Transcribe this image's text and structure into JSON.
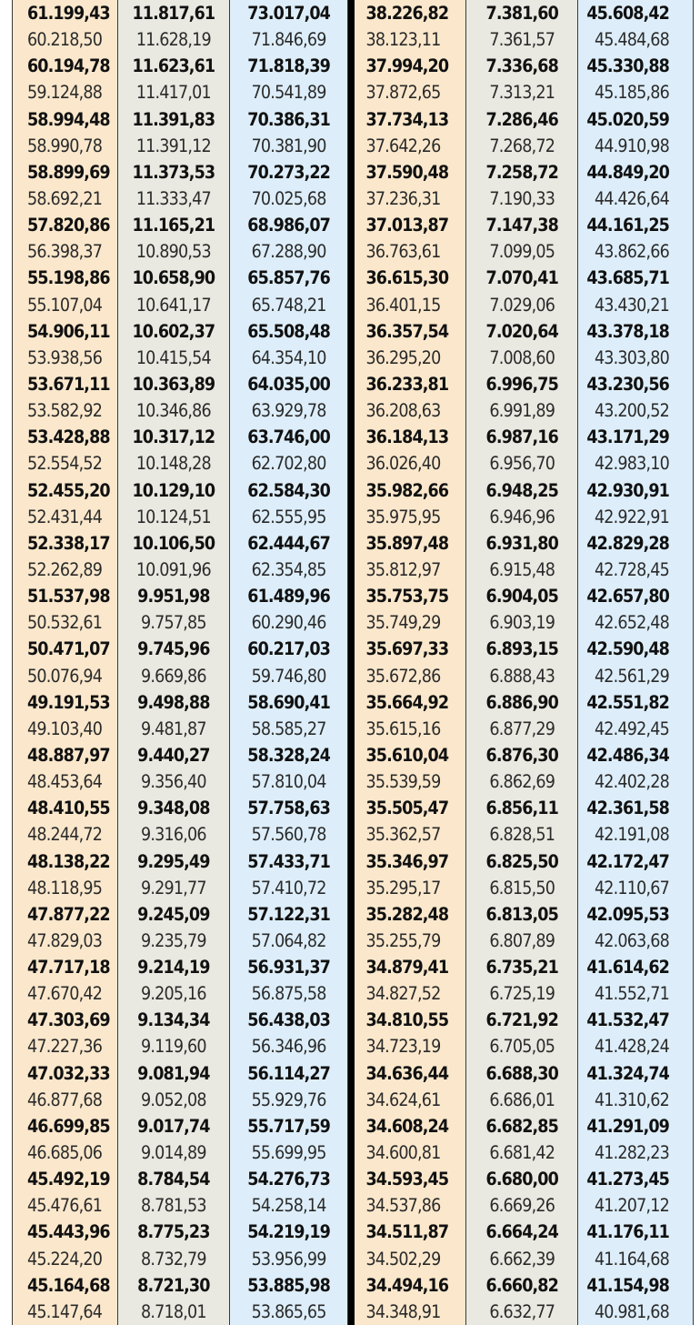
{
  "table": {
    "columns": [
      {
        "name": "col-1",
        "bg": "#fbe8cc",
        "values": [
          "61.199,43",
          "60.218,50",
          "60.194,78",
          "59.124,88",
          "58.994,48",
          "58.990,78",
          "58.899,69",
          "58.692,21",
          "57.820,86",
          "56.398,37",
          "55.198,86",
          "55.107,04",
          "54.906,11",
          "53.938,56",
          "53.671,11",
          "53.582,92",
          "53.428,88",
          "52.554,52",
          "52.455,20",
          "52.431,44",
          "52.338,17",
          "52.262,89",
          "51.537,98",
          "50.532,61",
          "50.471,07",
          "50.076,94",
          "49.191,53",
          "49.103,40",
          "48.887,97",
          "48.453,64",
          "48.410,55",
          "48.244,72",
          "48.138,22",
          "48.118,95",
          "47.877,22",
          "47.829,03",
          "47.717,18",
          "47.670,42",
          "47.303,69",
          "47.227,36",
          "47.032,33",
          "46.877,68",
          "46.699,85",
          "46.685,06",
          "45.492,19",
          "45.476,61",
          "45.443,96",
          "45.224,20",
          "45.164,68",
          "45.147,64"
        ]
      },
      {
        "name": "col-2",
        "bg": "#e9e9e1",
        "values": [
          "11.817,61",
          "11.628,19",
          "11.623,61",
          "11.417,01",
          "11.391,83",
          "11.391,12",
          "11.373,53",
          "11.333,47",
          "11.165,21",
          "10.890,53",
          "10.658,90",
          "10.641,17",
          "10.602,37",
          "10.415,54",
          "10.363,89",
          "10.346,86",
          "10.317,12",
          "10.148,28",
          "10.129,10",
          "10.124,51",
          "10.106,50",
          "10.091,96",
          "9.951,98",
          "9.757,85",
          "9.745,96",
          "9.669,86",
          "9.498,88",
          "9.481,87",
          "9.440,27",
          "9.356,40",
          "9.348,08",
          "9.316,06",
          "9.295,49",
          "9.291,77",
          "9.245,09",
          "9.235,79",
          "9.214,19",
          "9.205,16",
          "9.134,34",
          "9.119,60",
          "9.081,94",
          "9.052,08",
          "9.017,74",
          "9.014,89",
          "8.784,54",
          "8.781,53",
          "8.775,23",
          "8.732,79",
          "8.721,30",
          "8.718,01"
        ]
      },
      {
        "name": "col-3",
        "bg": "#ddeefa",
        "values": [
          "73.017,04",
          "71.846,69",
          "71.818,39",
          "70.541,89",
          "70.386,31",
          "70.381,90",
          "70.273,22",
          "70.025,68",
          "68.986,07",
          "67.288,90",
          "65.857,76",
          "65.748,21",
          "65.508,48",
          "64.354,10",
          "64.035,00",
          "63.929,78",
          "63.746,00",
          "62.702,80",
          "62.584,30",
          "62.555,95",
          "62.444,67",
          "62.354,85",
          "61.489,96",
          "60.290,46",
          "60.217,03",
          "59.746,80",
          "58.690,41",
          "58.585,27",
          "58.328,24",
          "57.810,04",
          "57.758,63",
          "57.560,78",
          "57.433,71",
          "57.410,72",
          "57.122,31",
          "57.064,82",
          "56.931,37",
          "56.875,58",
          "56.438,03",
          "56.346,96",
          "56.114,27",
          "55.929,76",
          "55.717,59",
          "55.699,95",
          "54.276,73",
          "54.258,14",
          "54.219,19",
          "53.956,99",
          "53.885,98",
          "53.865,65"
        ]
      },
      {
        "name": "col-4",
        "bg": "#fbe8cc",
        "values": [
          "38.226,82",
          "38.123,11",
          "37.994,20",
          "37.872,65",
          "37.734,13",
          "37.642,26",
          "37.590,48",
          "37.236,31",
          "37.013,87",
          "36.763,61",
          "36.615,30",
          "36.401,15",
          "36.357,54",
          "36.295,20",
          "36.233,81",
          "36.208,63",
          "36.184,13",
          "36.026,40",
          "35.982,66",
          "35.975,95",
          "35.897,48",
          "35.812,97",
          "35.753,75",
          "35.749,29",
          "35.697,33",
          "35.672,86",
          "35.664,92",
          "35.615,16",
          "35.610,04",
          "35.539,59",
          "35.505,47",
          "35.362,57",
          "35.346,97",
          "35.295,17",
          "35.282,48",
          "35.255,79",
          "34.879,41",
          "34.827,52",
          "34.810,55",
          "34.723,19",
          "34.636,44",
          "34.624,61",
          "34.608,24",
          "34.600,81",
          "34.593,45",
          "34.537,86",
          "34.511,87",
          "34.502,29",
          "34.494,16",
          "34.348,91"
        ]
      },
      {
        "name": "col-5",
        "bg": "#e9e9e1",
        "values": [
          "7.381,60",
          "7.361,57",
          "7.336,68",
          "7.313,21",
          "7.286,46",
          "7.268,72",
          "7.258,72",
          "7.190,33",
          "7.147,38",
          "7.099,05",
          "7.070,41",
          "7.029,06",
          "7.020,64",
          "7.008,60",
          "6.996,75",
          "6.991,89",
          "6.987,16",
          "6.956,70",
          "6.948,25",
          "6.946,96",
          "6.931,80",
          "6.915,48",
          "6.904,05",
          "6.903,19",
          "6.893,15",
          "6.888,43",
          "6.886,90",
          "6.877,29",
          "6.876,30",
          "6.862,69",
          "6.856,11",
          "6.828,51",
          "6.825,50",
          "6.815,50",
          "6.813,05",
          "6.807,89",
          "6.735,21",
          "6.725,19",
          "6.721,92",
          "6.705,05",
          "6.688,30",
          "6.686,01",
          "6.682,85",
          "6.681,42",
          "6.680,00",
          "6.669,26",
          "6.664,24",
          "6.662,39",
          "6.660,82",
          "6.632,77"
        ]
      },
      {
        "name": "col-6",
        "bg": "#ddeefa",
        "values": [
          "45.608,42",
          "45.484,68",
          "45.330,88",
          "45.185,86",
          "45.020,59",
          "44.910,98",
          "44.849,20",
          "44.426,64",
          "44.161,25",
          "43.862,66",
          "43.685,71",
          "43.430,21",
          "43.378,18",
          "43.303,80",
          "43.230,56",
          "43.200,52",
          "43.171,29",
          "42.983,10",
          "42.930,91",
          "42.922,91",
          "42.829,28",
          "42.728,45",
          "42.657,80",
          "42.652,48",
          "42.590,48",
          "42.561,29",
          "42.551,82",
          "42.492,45",
          "42.486,34",
          "42.402,28",
          "42.361,58",
          "42.191,08",
          "42.172,47",
          "42.110,67",
          "42.095,53",
          "42.063,68",
          "41.614,62",
          "41.552,71",
          "41.532,47",
          "41.428,24",
          "41.324,74",
          "41.310,62",
          "41.291,09",
          "41.282,23",
          "41.273,45",
          "41.207,12",
          "41.176,11",
          "41.164,68",
          "41.154,98",
          "40.981,68"
        ]
      }
    ]
  }
}
